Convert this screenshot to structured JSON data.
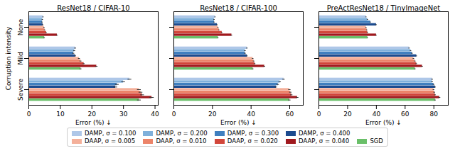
{
  "chart_data": [
    {
      "type": "bar",
      "orientation": "horizontal",
      "title": "ResNet18 / CIFAR-10",
      "x_label": "Error (%) ↓",
      "y_label": "Corruption intensity",
      "grid": false,
      "categories": [
        "None",
        "Mild",
        "Severe"
      ],
      "xlim": [
        0,
        41
      ],
      "xticks": [
        0,
        10,
        20,
        30,
        40
      ],
      "series": [
        {
          "name": "DAMP, σ = 0.100",
          "color": "#aec7e8",
          "values": [
            4.6,
            14.8,
            32.0
          ],
          "errors": [
            0.2,
            0.3,
            0.6
          ]
        },
        {
          "name": "DAMP, σ = 0.200",
          "color": "#7fb0db",
          "values": [
            4.4,
            14.5,
            30.0
          ],
          "errors": [
            0.2,
            0.3,
            0.6
          ]
        },
        {
          "name": "DAMP, σ = 0.300",
          "color": "#3f7fbf",
          "values": [
            4.3,
            14.2,
            28.0
          ],
          "errors": [
            0.2,
            0.3,
            0.6
          ]
        },
        {
          "name": "DAMP, σ = 0.400",
          "color": "#1c4b8f",
          "values": [
            4.5,
            14.8,
            27.5
          ],
          "errors": [
            0.2,
            0.3,
            0.6
          ]
        },
        {
          "name": "DAAP, σ = 0.005",
          "color": "#f4b09a",
          "values": [
            4.9,
            16.0,
            35.0
          ],
          "errors": [
            0.2,
            0.3,
            0.6
          ]
        },
        {
          "name": "DAAP, σ = 0.010",
          "color": "#ec8469",
          "values": [
            5.1,
            16.5,
            35.5
          ],
          "errors": [
            0.2,
            0.3,
            0.6
          ]
        },
        {
          "name": "DAAP, σ = 0.020",
          "color": "#d2463a",
          "values": [
            5.6,
            17.5,
            36.0
          ],
          "errors": [
            0.2,
            0.3,
            0.6
          ]
        },
        {
          "name": "DAAP, σ = 0.040",
          "color": "#a0191e",
          "values": [
            9.0,
            21.5,
            39.0
          ],
          "errors": [
            0.3,
            0.4,
            0.7
          ]
        },
        {
          "name": "SGD",
          "color": "#6abf69",
          "values": [
            5.0,
            16.5,
            35.0
          ],
          "errors": [
            0.2,
            0.3,
            0.6
          ]
        }
      ]
    },
    {
      "type": "bar",
      "orientation": "horizontal",
      "title": "ResNet18 / CIFAR-100",
      "x_label": "Error (%) ↓",
      "grid": false,
      "tick_labels": "x",
      "categories": [
        "None",
        "Mild",
        "Severe"
      ],
      "xlim": [
        0,
        67
      ],
      "xticks": [
        0,
        20,
        40,
        60
      ],
      "series": [
        {
          "name": "DAMP, σ = 0.100",
          "color": "#aec7e8",
          "values": [
            21.5,
            38.0,
            57.0
          ],
          "errors": [
            0.3,
            0.4,
            0.6
          ]
        },
        {
          "name": "DAMP, σ = 0.200",
          "color": "#7fb0db",
          "values": [
            21.0,
            37.0,
            55.0
          ],
          "errors": [
            0.3,
            0.4,
            0.6
          ]
        },
        {
          "name": "DAMP, σ = 0.300",
          "color": "#3f7fbf",
          "values": [
            21.0,
            37.0,
            54.0
          ],
          "errors": [
            0.3,
            0.4,
            0.6
          ]
        },
        {
          "name": "DAMP, σ = 0.400",
          "color": "#1c4b8f",
          "values": [
            22.5,
            38.0,
            53.0
          ],
          "errors": [
            0.3,
            0.4,
            0.6
          ]
        },
        {
          "name": "DAAP, σ = 0.005",
          "color": "#f4b09a",
          "values": [
            23.0,
            41.0,
            60.0
          ],
          "errors": [
            0.3,
            0.4,
            0.6
          ]
        },
        {
          "name": "DAAP, σ = 0.010",
          "color": "#ec8469",
          "values": [
            23.5,
            41.5,
            60.5
          ],
          "errors": [
            0.3,
            0.4,
            0.6
          ]
        },
        {
          "name": "DAAP, σ = 0.020",
          "color": "#d2463a",
          "values": [
            25.0,
            42.0,
            61.0
          ],
          "errors": [
            0.3,
            0.4,
            0.6
          ]
        },
        {
          "name": "DAAP, σ = 0.040",
          "color": "#a0191e",
          "values": [
            30.0,
            47.0,
            64.0
          ],
          "errors": [
            0.4,
            0.5,
            0.7
          ]
        },
        {
          "name": "SGD",
          "color": "#6abf69",
          "values": [
            23.0,
            41.0,
            60.0
          ],
          "errors": [
            0.3,
            0.4,
            0.6
          ]
        }
      ]
    },
    {
      "type": "bar",
      "orientation": "horizontal",
      "title": "PreActResNet18 / TinyImageNet",
      "x_label": "Error (%) ↓",
      "grid": false,
      "tick_labels": "x",
      "categories": [
        "None",
        "Mild",
        "Severe"
      ],
      "xlim": [
        0,
        90
      ],
      "xticks": [
        0,
        20,
        40,
        60,
        80
      ],
      "series": [
        {
          "name": "DAMP, σ = 0.100",
          "color": "#aec7e8",
          "values": [
            33.0,
            63.0,
            79.0
          ],
          "errors": [
            0.4,
            0.5,
            0.6
          ]
        },
        {
          "name": "DAMP, σ = 0.200",
          "color": "#7fb0db",
          "values": [
            34.0,
            64.0,
            79.0
          ],
          "errors": [
            0.4,
            0.5,
            0.6
          ]
        },
        {
          "name": "DAMP, σ = 0.300",
          "color": "#3f7fbf",
          "values": [
            36.0,
            65.0,
            80.0
          ],
          "errors": [
            0.4,
            0.5,
            0.6
          ]
        },
        {
          "name": "DAMP, σ = 0.400",
          "color": "#1c4b8f",
          "values": [
            40.0,
            68.0,
            81.0
          ],
          "errors": [
            0.5,
            0.5,
            0.6
          ]
        },
        {
          "name": "DAAP, σ = 0.005",
          "color": "#f4b09a",
          "values": [
            33.0,
            66.0,
            80.0
          ],
          "errors": [
            0.4,
            0.5,
            0.6
          ]
        },
        {
          "name": "DAAP, σ = 0.010",
          "color": "#ec8469",
          "values": [
            33.5,
            67.0,
            80.5
          ],
          "errors": [
            0.4,
            0.5,
            0.6
          ]
        },
        {
          "name": "DAAP, σ = 0.020",
          "color": "#d2463a",
          "values": [
            34.0,
            68.0,
            81.0
          ],
          "errors": [
            0.4,
            0.5,
            0.6
          ]
        },
        {
          "name": "DAAP, σ = 0.040",
          "color": "#a0191e",
          "values": [
            40.0,
            72.0,
            84.0
          ],
          "errors": [
            0.5,
            0.6,
            0.7
          ]
        },
        {
          "name": "SGD",
          "color": "#6abf69",
          "values": [
            34.0,
            67.0,
            81.0
          ],
          "errors": [
            0.4,
            0.5,
            0.6
          ]
        }
      ]
    }
  ]
}
